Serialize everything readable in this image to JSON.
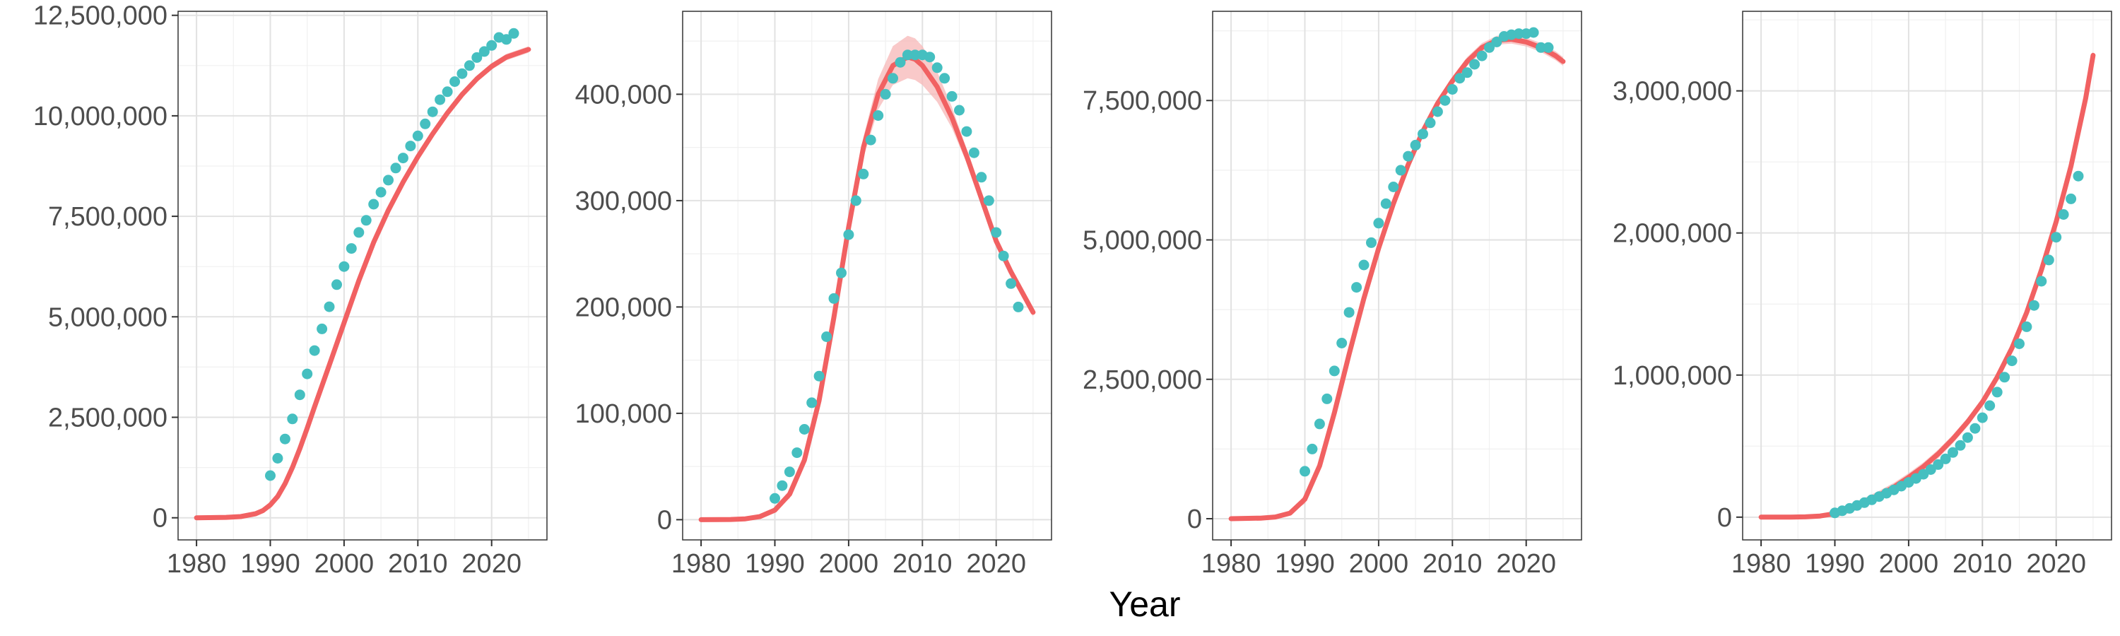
{
  "figure": {
    "xlabel": "Year"
  },
  "colors": {
    "model_line": "#F16162",
    "model_band": "#F7B7B7",
    "observed_points": "#45BFC0",
    "grid": "#e2e2e2"
  },
  "chart_data": [
    {
      "type": "line",
      "xlim": [
        1977.5,
        2027.5
      ],
      "ylim": [
        -550000,
        12600000
      ],
      "x_ticks": [
        1980,
        1990,
        2000,
        2010,
        2020
      ],
      "y_ticks": [
        0,
        2500000,
        5000000,
        7500000,
        10000000,
        12500000
      ],
      "x_tick_labels": [
        "1980",
        "1990",
        "2000",
        "2010",
        "2020"
      ],
      "y_tick_labels": [
        "0",
        "2,500,000",
        "5,000,000",
        "7,500,000",
        "10,000,000",
        "12,500,000"
      ],
      "grid": true,
      "model": {
        "x": [
          1980,
          1984,
          1986,
          1988,
          1989,
          1990,
          1991,
          1992,
          1993,
          1994,
          1995,
          1996,
          1998,
          2000,
          2002,
          2004,
          2006,
          2008,
          2010,
          2012,
          2014,
          2016,
          2018,
          2020,
          2022,
          2025
        ],
        "y": [
          0,
          10000,
          30000,
          100000,
          180000,
          320000,
          530000,
          850000,
          1250000,
          1720000,
          2230000,
          2760000,
          3800000,
          4850000,
          5900000,
          6850000,
          7650000,
          8350000,
          8980000,
          9550000,
          10070000,
          10530000,
          10920000,
          11230000,
          11460000,
          11650000
        ],
        "band": 80000
      },
      "observed": {
        "x": [
          1990,
          1991,
          1992,
          1993,
          1994,
          1995,
          1996,
          1997,
          1998,
          1999,
          2000,
          2001,
          2002,
          2003,
          2004,
          2005,
          2006,
          2007,
          2008,
          2009,
          2010,
          2011,
          2012,
          2013,
          2014,
          2015,
          2016,
          2017,
          2018,
          2019,
          2020,
          2021,
          2022,
          2023
        ],
        "y": [
          1050000,
          1480000,
          1960000,
          2460000,
          3060000,
          3580000,
          4160000,
          4700000,
          5250000,
          5800000,
          6250000,
          6700000,
          7100000,
          7400000,
          7800000,
          8100000,
          8400000,
          8700000,
          8950000,
          9250000,
          9500000,
          9800000,
          10100000,
          10400000,
          10600000,
          10850000,
          11050000,
          11250000,
          11450000,
          11600000,
          11750000,
          11950000,
          11900000,
          12050000
        ]
      }
    },
    {
      "type": "line",
      "xlim": [
        1977.5,
        2027.5
      ],
      "ylim": [
        -19000,
        478000
      ],
      "x_ticks": [
        1980,
        1990,
        2000,
        2010,
        2020
      ],
      "y_ticks": [
        0,
        100000,
        200000,
        300000,
        400000
      ],
      "x_tick_labels": [
        "1980",
        "1990",
        "2000",
        "2010",
        "2020"
      ],
      "y_tick_labels": [
        "0",
        "100,000",
        "200,000",
        "300,000",
        "400,000"
      ],
      "grid": true,
      "model": {
        "x": [
          1980,
          1984,
          1986,
          1988,
          1990,
          1992,
          1994,
          1996,
          1998,
          2000,
          2002,
          2004,
          2006,
          2008,
          2009,
          2010,
          2012,
          2014,
          2016,
          2018,
          2020,
          2022,
          2025
        ],
        "y": [
          0,
          200,
          800,
          3000,
          9000,
          24000,
          56000,
          112000,
          190000,
          275000,
          350000,
          400000,
          427000,
          435000,
          433000,
          427000,
          407000,
          378000,
          342000,
          302000,
          262000,
          233000,
          195000
        ],
        "band_peak": 20000,
        "band_base": 4000
      },
      "observed": {
        "x": [
          1990,
          1991,
          1992,
          1993,
          1994,
          1995,
          1996,
          1997,
          1998,
          1999,
          2000,
          2001,
          2002,
          2003,
          2004,
          2005,
          2006,
          2007,
          2008,
          2009,
          2010,
          2011,
          2012,
          2013,
          2014,
          2015,
          2016,
          2017,
          2018,
          2019,
          2020,
          2021,
          2022,
          2023
        ],
        "y": [
          20000,
          32000,
          45000,
          63000,
          85000,
          110000,
          135000,
          172000,
          208000,
          232000,
          268000,
          300000,
          325000,
          357000,
          380000,
          400000,
          415000,
          430000,
          437000,
          437000,
          437000,
          435000,
          425000,
          415000,
          398000,
          385000,
          365000,
          345000,
          322000,
          300000,
          270000,
          248000,
          222000,
          200000
        ]
      }
    },
    {
      "type": "line",
      "xlim": [
        1977.5,
        2027.5
      ],
      "ylim": [
        -380000,
        9100000
      ],
      "x_ticks": [
        1980,
        1990,
        2000,
        2010,
        2020
      ],
      "y_ticks": [
        0,
        2500000,
        5000000,
        7500000
      ],
      "x_tick_labels": [
        "1980",
        "1990",
        "2000",
        "2010",
        "2020"
      ],
      "y_tick_labels": [
        "0",
        "2,500,000",
        "5,000,000",
        "7,500,000"
      ],
      "grid": true,
      "model": {
        "x": [
          1980,
          1984,
          1986,
          1988,
          1990,
          1992,
          1994,
          1996,
          1998,
          2000,
          2002,
          2004,
          2006,
          2008,
          2010,
          2012,
          2014,
          2016,
          2018,
          2020,
          2022,
          2024,
          2025
        ],
        "y": [
          0,
          10000,
          30000,
          100000,
          350000,
          950000,
          1900000,
          2950000,
          3950000,
          4850000,
          5650000,
          6350000,
          6950000,
          7450000,
          7850000,
          8200000,
          8450000,
          8580000,
          8600000,
          8550000,
          8450000,
          8300000,
          8200000
        ],
        "band": 80000
      },
      "observed": {
        "x": [
          1990,
          1991,
          1992,
          1993,
          1994,
          1995,
          1996,
          1997,
          1998,
          1999,
          2000,
          2001,
          2002,
          2003,
          2004,
          2005,
          2006,
          2007,
          2008,
          2009,
          2010,
          2011,
          2012,
          2013,
          2014,
          2015,
          2016,
          2017,
          2018,
          2019,
          2020,
          2021,
          2022,
          2023
        ],
        "y": [
          850000,
          1250000,
          1700000,
          2150000,
          2650000,
          3150000,
          3700000,
          4150000,
          4550000,
          4950000,
          5300000,
          5650000,
          5950000,
          6250000,
          6500000,
          6700000,
          6900000,
          7100000,
          7300000,
          7500000,
          7700000,
          7900000,
          8000000,
          8150000,
          8300000,
          8450000,
          8550000,
          8650000,
          8680000,
          8700000,
          8700000,
          8720000,
          8450000,
          8450000
        ]
      }
    },
    {
      "type": "line",
      "xlim": [
        1977.5,
        2027.5
      ],
      "ylim": [
        -160000,
        3560000
      ],
      "x_ticks": [
        1980,
        1990,
        2000,
        2010,
        2020
      ],
      "y_ticks": [
        0,
        1000000,
        2000000,
        3000000
      ],
      "x_tick_labels": [
        "1980",
        "1990",
        "2000",
        "2010",
        "2020"
      ],
      "y_tick_labels": [
        "0",
        "1,000,000",
        "2,000,000",
        "3,000,000"
      ],
      "grid": true,
      "model": {
        "x": [
          1980,
          1984,
          1986,
          1988,
          1990,
          1992,
          1994,
          1996,
          1998,
          2000,
          2002,
          2004,
          2006,
          2008,
          2010,
          2012,
          2014,
          2016,
          2018,
          2020,
          2022,
          2024,
          2025
        ],
        "y": [
          0,
          500,
          2000,
          8000,
          25000,
          60000,
          105000,
          155000,
          212000,
          280000,
          355000,
          445000,
          550000,
          670000,
          810000,
          985000,
          1190000,
          1440000,
          1740000,
          2080000,
          2470000,
          2950000,
          3250000
        ],
        "band": 30000
      },
      "observed": {
        "x": [
          1990,
          1991,
          1992,
          1993,
          1994,
          1995,
          1996,
          1997,
          1998,
          1999,
          2000,
          2001,
          2002,
          2003,
          2004,
          2005,
          2006,
          2007,
          2008,
          2009,
          2010,
          2011,
          2012,
          2013,
          2014,
          2015,
          2016,
          2017,
          2018,
          2019,
          2020,
          2021,
          2022,
          2023
        ],
        "y": [
          30000,
          45000,
          62000,
          82000,
          102000,
          122000,
          145000,
          168000,
          192000,
          218000,
          245000,
          272000,
          302000,
          335000,
          370000,
          410000,
          455000,
          505000,
          560000,
          625000,
          700000,
          785000,
          880000,
          985000,
          1100000,
          1220000,
          1340000,
          1490000,
          1660000,
          1810000,
          1970000,
          2130000,
          2240000,
          2400000
        ]
      }
    }
  ]
}
